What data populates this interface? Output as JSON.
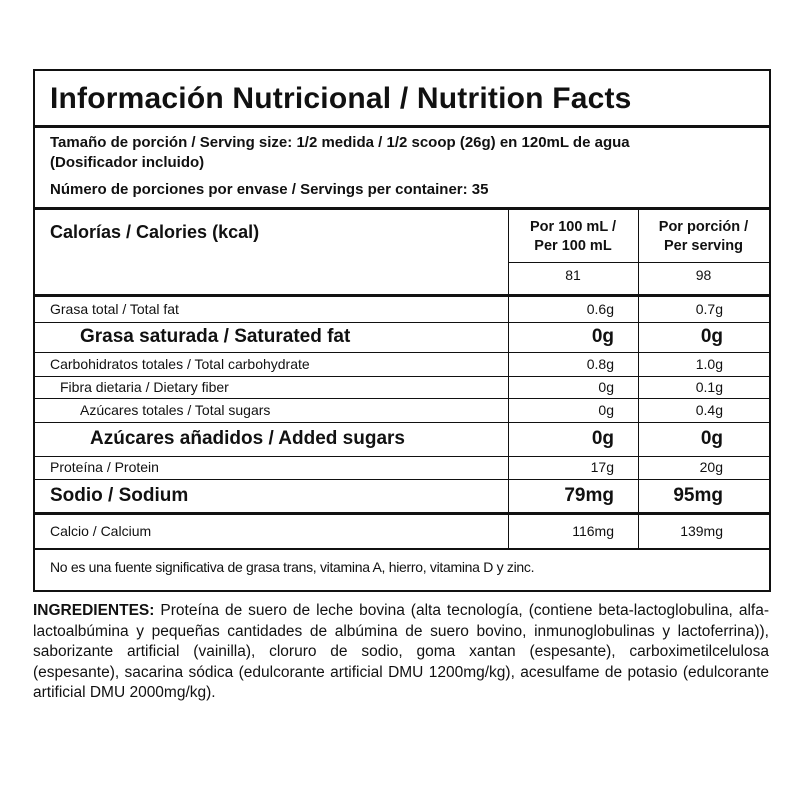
{
  "header": {
    "title": "Información Nutricional / Nutrition Facts"
  },
  "serving": {
    "size": "Tamaño de porción / Serving size: 1/2 medida / 1/2 scoop (26g) en 120mL de agua",
    "note": "(Dosificador incluido)",
    "servings": "Número de porciones por envase / Servings per container: 35"
  },
  "calories": {
    "label": "Calorías / Calories (kcal)",
    "columns": [
      [
        "Por 100 mL /",
        "Per 100 mL"
      ],
      [
        "Por porción /",
        "Per serving"
      ]
    ],
    "values": [
      "81",
      "98"
    ]
  },
  "rows": [
    [
      "Grasa total / Total fat",
      "0.6g",
      "0.7g"
    ],
    [
      "Grasa saturada / Saturated fat",
      "0g",
      "0g"
    ],
    [
      "Carbohidratos totales / Total carbohydrate",
      "0.8g",
      "1.0g"
    ],
    [
      "Fibra dietaria / Dietary fiber",
      "0g",
      "0.1g"
    ],
    [
      "Azúcares totales / Total sugars",
      "0g",
      "0.4g"
    ],
    [
      "Azúcares añadidos / Added sugars",
      "0g",
      "0g"
    ],
    [
      "Proteína / Protein",
      "17g",
      "20g"
    ],
    [
      "Sodio / Sodium",
      "79mg",
      "95mg"
    ],
    [
      "Calcio / Calcium",
      "116mg",
      "139mg"
    ]
  ],
  "note": "No es una fuente significativa de grasa trans, vitamina  A, hierro, vitamina D y zinc.",
  "ingredients": {
    "label": "INGREDIENTES:",
    "text": "Proteína de suero de leche bovina (alta tecnología, (contiene beta-lactoglobulina, alfa-lactoalbúmina y pequeñas cantidades de albúmina de suero bovino, inmunoglobulinas y lactoferrina)), saborizante artificial (vainilla), cloruro de sodio, goma xantan (espesante), carboximetilcelulosa (espesante), sacarina sódica (edulcorante artificial DMU 1200mg/kg), acesulfame de potasio (edulcorante artificial DMU 2000mg/kg)."
  }
}
